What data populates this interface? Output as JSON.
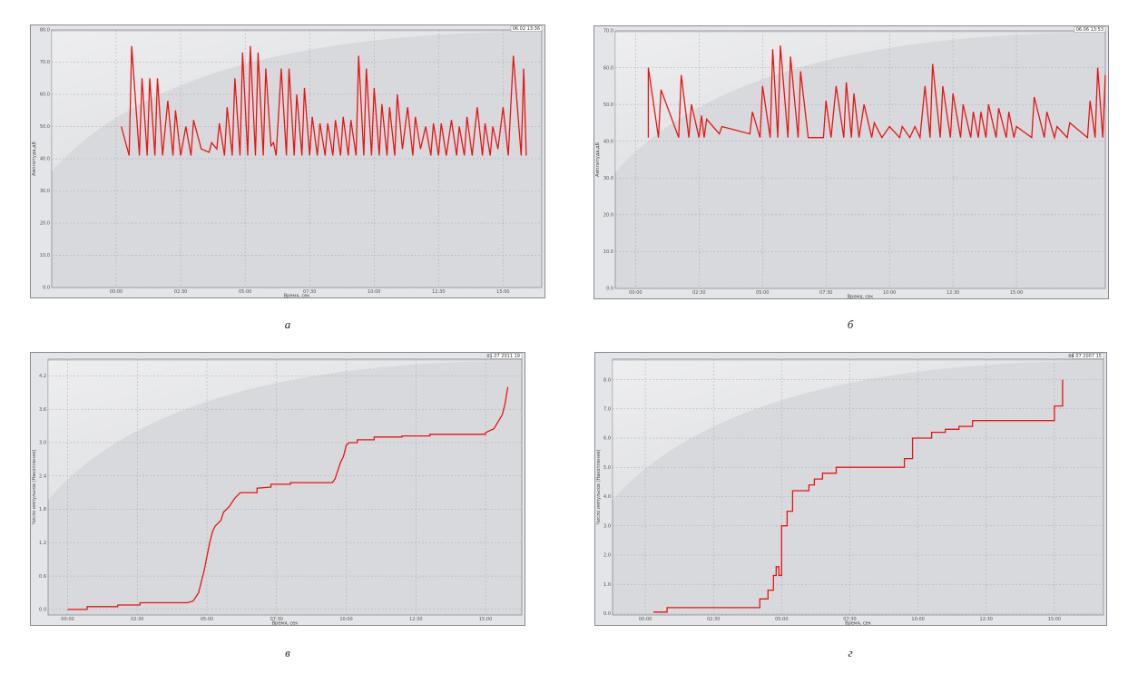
{
  "colors": {
    "series": "#e81414",
    "plot_bg": "#d8d9dc",
    "grid": "#a9aab0",
    "frame": "#8a8b90"
  },
  "chart_data": [
    {
      "id": "a",
      "type": "line",
      "caption": "а",
      "timestamp": "06.02 13:36",
      "xlabel": "Время, сек",
      "ylabel": "Амплитуда,дБ",
      "xlim": [
        -2.5,
        16.5
      ],
      "ylim": [
        0,
        80
      ],
      "xticks": [
        0,
        2.5,
        5,
        7.5,
        10,
        12.5,
        15
      ],
      "xtick_labels": [
        "00:00",
        "02:30",
        "05:00",
        "07:30",
        "10:00",
        "12:30",
        "15:00"
      ],
      "yticks": [
        0,
        10,
        20,
        30,
        40,
        50,
        60,
        70,
        80
      ],
      "ytick_labels": [
        "0.0",
        "10.0",
        "20.0",
        "30.0",
        "40.0",
        "50.0",
        "60.0",
        "70.0",
        "80.0"
      ],
      "grid": true,
      "x": [
        0.2,
        0.5,
        0.6,
        0.9,
        1.1,
        1.3,
        1.5,
        1.7,
        1.9,
        2.1,
        2.3,
        2.5,
        2.7,
        2.9,
        3.3,
        3.5,
        3.8,
        4.0,
        4.2,
        4.4,
        4.6,
        4.8,
        4.9,
        5.1,
        5.3,
        5.5,
        5.7,
        5.9,
        6.1,
        6.3,
        6.5,
        6.7,
        6.9,
        7.1,
        7.3,
        7.5,
        7.7,
        7.9,
        8.1,
        8.3,
        8.5,
        8.7,
        8.9,
        9.1,
        9.3,
        9.5,
        9.7,
        9.9,
        10.1,
        10.3,
        10.5,
        10.7,
        10.9,
        11.1,
        11.3,
        11.5,
        11.7,
        11.9,
        12.1,
        12.3,
        12.5,
        12.7,
        12.9,
        13.1,
        13.3,
        13.5,
        13.7,
        13.9,
        14.1,
        14.3,
        14.5,
        14.7,
        14.9,
        15.1,
        15.3,
        15.5,
        15.7,
        15.9
      ],
      "y": [
        41,
        41,
        75,
        41,
        65,
        41,
        65,
        41,
        65,
        41,
        58,
        41,
        55,
        41,
        50,
        41,
        52,
        42,
        45,
        41,
        44,
        41,
        51,
        41,
        56,
        41,
        65,
        41,
        74,
        41,
        75,
        41,
        73,
        41,
        69,
        41,
        60,
        41,
        69,
        41,
        68,
        41,
        61,
        41,
        62,
        41,
        53,
        41,
        51,
        41,
        51,
        41,
        52,
        41,
        53,
        41,
        52,
        41,
        72,
        41,
        68,
        41,
        62,
        41,
        57,
        41,
        56,
        41,
        60,
        41,
        56,
        41,
        53,
        41,
        50,
        41,
        51,
        41
      ],
      "points": [
        [
          0.2,
          50
        ],
        [
          0.5,
          41
        ],
        [
          0.6,
          75
        ],
        [
          0.9,
          41
        ],
        [
          1.0,
          65
        ],
        [
          1.2,
          41
        ],
        [
          1.3,
          65
        ],
        [
          1.5,
          41
        ],
        [
          1.6,
          65
        ],
        [
          1.8,
          41
        ],
        [
          2.0,
          58
        ],
        [
          2.2,
          41
        ],
        [
          2.3,
          55
        ],
        [
          2.5,
          41
        ],
        [
          2.7,
          50
        ],
        [
          2.9,
          41
        ],
        [
          3.0,
          52
        ],
        [
          3.3,
          43
        ],
        [
          3.6,
          42
        ],
        [
          3.7,
          45
        ],
        [
          3.9,
          43
        ],
        [
          4.0,
          51
        ],
        [
          4.2,
          41
        ],
        [
          4.3,
          56
        ],
        [
          4.5,
          41
        ],
        [
          4.6,
          65
        ],
        [
          4.8,
          41
        ],
        [
          4.9,
          73
        ],
        [
          5.1,
          41
        ],
        [
          5.2,
          75
        ],
        [
          5.4,
          41
        ],
        [
          5.5,
          73
        ],
        [
          5.7,
          41
        ],
        [
          5.8,
          68
        ],
        [
          6.0,
          44
        ],
        [
          6.1,
          45
        ],
        [
          6.2,
          41
        ],
        [
          6.4,
          68
        ],
        [
          6.6,
          41
        ],
        [
          6.7,
          68
        ],
        [
          6.9,
          41
        ],
        [
          7.0,
          60
        ],
        [
          7.2,
          41
        ],
        [
          7.3,
          62
        ],
        [
          7.5,
          41
        ],
        [
          7.6,
          53
        ],
        [
          7.8,
          41
        ],
        [
          7.9,
          51
        ],
        [
          8.1,
          41
        ],
        [
          8.2,
          51
        ],
        [
          8.4,
          41
        ],
        [
          8.5,
          52
        ],
        [
          8.7,
          41
        ],
        [
          8.8,
          53
        ],
        [
          9.0,
          41
        ],
        [
          9.1,
          52
        ],
        [
          9.3,
          41
        ],
        [
          9.4,
          72
        ],
        [
          9.6,
          41
        ],
        [
          9.7,
          68
        ],
        [
          9.9,
          41
        ],
        [
          10.0,
          62
        ],
        [
          10.2,
          41
        ],
        [
          10.3,
          57
        ],
        [
          10.5,
          41
        ],
        [
          10.6,
          56
        ],
        [
          10.8,
          41
        ],
        [
          10.9,
          60
        ],
        [
          11.1,
          43
        ],
        [
          11.3,
          56
        ],
        [
          11.5,
          41
        ],
        [
          11.6,
          53
        ],
        [
          11.8,
          43
        ],
        [
          12.0,
          50
        ],
        [
          12.2,
          41
        ],
        [
          12.3,
          51
        ],
        [
          12.5,
          41
        ],
        [
          12.6,
          51
        ],
        [
          12.8,
          41
        ],
        [
          13.0,
          52
        ],
        [
          13.2,
          41
        ],
        [
          13.3,
          50
        ],
        [
          13.5,
          41
        ],
        [
          13.6,
          53
        ],
        [
          13.8,
          41
        ],
        [
          14.0,
          56
        ],
        [
          14.2,
          41
        ],
        [
          14.3,
          51
        ],
        [
          14.5,
          41
        ],
        [
          14.6,
          50
        ],
        [
          14.8,
          43
        ],
        [
          15.0,
          56
        ],
        [
          15.2,
          41
        ],
        [
          15.4,
          72
        ],
        [
          15.7,
          41
        ],
        [
          15.8,
          68
        ],
        [
          15.9,
          41
        ]
      ]
    },
    {
      "id": "b",
      "type": "line",
      "caption": "б",
      "timestamp": "06.06 13:53",
      "xlabel": "Время, сек",
      "ylabel": "Амплитуда,дБ",
      "xlim": [
        -0.8,
        18.5
      ],
      "ylim": [
        0,
        70
      ],
      "xticks": [
        0,
        2.5,
        5,
        7.5,
        10,
        12.5,
        15
      ],
      "xtick_labels": [
        "00:00",
        "02:30",
        "05:00",
        "07:30",
        "10:00",
        "12:30",
        "15:00"
      ],
      "yticks": [
        0,
        10,
        20,
        30,
        40,
        50,
        60,
        70
      ],
      "ytick_labels": [
        "0.0",
        "10.0",
        "20.0",
        "30.0",
        "40.0",
        "50.0",
        "60.0",
        "70.0"
      ],
      "grid": true,
      "points": [
        [
          0.5,
          41
        ],
        [
          0.5,
          60
        ],
        [
          0.9,
          41
        ],
        [
          1.0,
          54
        ],
        [
          1.7,
          41
        ],
        [
          1.8,
          58
        ],
        [
          2.1,
          41
        ],
        [
          2.2,
          50
        ],
        [
          2.5,
          41
        ],
        [
          2.6,
          47
        ],
        [
          2.7,
          41
        ],
        [
          2.8,
          46
        ],
        [
          3.3,
          42
        ],
        [
          3.4,
          44
        ],
        [
          4.5,
          42
        ],
        [
          4.6,
          48
        ],
        [
          4.9,
          41
        ],
        [
          5.0,
          55
        ],
        [
          5.3,
          41
        ],
        [
          5.4,
          65
        ],
        [
          5.6,
          41
        ],
        [
          5.7,
          66
        ],
        [
          6.0,
          41
        ],
        [
          6.1,
          63
        ],
        [
          6.4,
          41
        ],
        [
          6.5,
          59
        ],
        [
          6.8,
          41
        ],
        [
          7.4,
          41
        ],
        [
          7.5,
          51
        ],
        [
          7.7,
          41
        ],
        [
          7.9,
          55
        ],
        [
          8.2,
          41
        ],
        [
          8.3,
          56
        ],
        [
          8.5,
          41
        ],
        [
          8.6,
          53
        ],
        [
          8.8,
          41
        ],
        [
          9.0,
          50
        ],
        [
          9.3,
          41
        ],
        [
          9.4,
          45
        ],
        [
          9.7,
          41
        ],
        [
          10.0,
          44
        ],
        [
          10.4,
          41
        ],
        [
          10.5,
          44
        ],
        [
          10.8,
          41
        ],
        [
          11.0,
          44
        ],
        [
          11.2,
          41
        ],
        [
          11.4,
          55
        ],
        [
          11.6,
          41
        ],
        [
          11.7,
          61
        ],
        [
          12.0,
          41
        ],
        [
          12.1,
          55
        ],
        [
          12.4,
          41
        ],
        [
          12.5,
          53
        ],
        [
          12.8,
          41
        ],
        [
          12.9,
          50
        ],
        [
          13.2,
          41
        ],
        [
          13.3,
          48
        ],
        [
          13.5,
          41
        ],
        [
          13.6,
          48
        ],
        [
          13.8,
          41
        ],
        [
          13.9,
          50
        ],
        [
          14.2,
          41
        ],
        [
          14.3,
          49
        ],
        [
          14.6,
          41
        ],
        [
          14.7,
          48
        ],
        [
          14.9,
          41
        ],
        [
          15.0,
          44
        ],
        [
          15.6,
          41
        ],
        [
          15.7,
          52
        ],
        [
          16.1,
          41
        ],
        [
          16.2,
          48
        ],
        [
          16.5,
          41
        ],
        [
          16.6,
          44
        ],
        [
          17.0,
          41
        ],
        [
          17.1,
          45
        ],
        [
          17.8,
          41
        ],
        [
          17.9,
          51
        ],
        [
          18.1,
          41
        ],
        [
          18.2,
          60
        ],
        [
          18.4,
          41
        ],
        [
          18.5,
          58
        ]
      ]
    },
    {
      "id": "v",
      "type": "line",
      "caption": "в",
      "timestamp": "01.07 2011 19",
      "xlabel": "Время, сек",
      "ylabel": "Число импульсов (Накопление)",
      "xlim": [
        -0.7,
        16.3
      ],
      "ylim": [
        -0.1,
        4.5
      ],
      "xticks": [
        0,
        2.5,
        5,
        7.5,
        10,
        12.5,
        15
      ],
      "xtick_labels": [
        "00:00",
        "02:30",
        "05:00",
        "07:30",
        "10:00",
        "12:30",
        "15:00"
      ],
      "yticks": [
        0,
        0.6,
        1.2,
        1.8,
        2.4,
        3.0,
        3.6,
        4.2
      ],
      "ytick_labels": [
        "0.0",
        "0.6",
        "1.2",
        "1.8",
        "2.4",
        "3.0",
        "3.6",
        "4.2"
      ],
      "grid": true,
      "points": [
        [
          0,
          0
        ],
        [
          0.7,
          0
        ],
        [
          0.7,
          0.05
        ],
        [
          1.8,
          0.05
        ],
        [
          1.8,
          0.08
        ],
        [
          2.6,
          0.08
        ],
        [
          2.6,
          0.12
        ],
        [
          4.3,
          0.12
        ],
        [
          4.5,
          0.15
        ],
        [
          4.6,
          0.22
        ],
        [
          4.7,
          0.3
        ],
        [
          4.8,
          0.5
        ],
        [
          4.9,
          0.7
        ],
        [
          5.0,
          0.95
        ],
        [
          5.1,
          1.2
        ],
        [
          5.2,
          1.4
        ],
        [
          5.3,
          1.5
        ],
        [
          5.5,
          1.6
        ],
        [
          5.6,
          1.75
        ],
        [
          5.8,
          1.85
        ],
        [
          6.0,
          2.0
        ],
        [
          6.2,
          2.1
        ],
        [
          6.8,
          2.1
        ],
        [
          6.8,
          2.18
        ],
        [
          7.3,
          2.2
        ],
        [
          7.3,
          2.25
        ],
        [
          8.0,
          2.25
        ],
        [
          8.0,
          2.28
        ],
        [
          9.5,
          2.28
        ],
        [
          9.6,
          2.35
        ],
        [
          9.7,
          2.5
        ],
        [
          9.8,
          2.65
        ],
        [
          9.9,
          2.75
        ],
        [
          10.0,
          2.95
        ],
        [
          10.1,
          3.0
        ],
        [
          10.4,
          3.0
        ],
        [
          10.4,
          3.05
        ],
        [
          11.0,
          3.05
        ],
        [
          11.0,
          3.1
        ],
        [
          12.0,
          3.1
        ],
        [
          12.0,
          3.12
        ],
        [
          13.0,
          3.12
        ],
        [
          13.0,
          3.15
        ],
        [
          15.0,
          3.15
        ],
        [
          15.0,
          3.18
        ],
        [
          15.3,
          3.25
        ],
        [
          15.6,
          3.5
        ],
        [
          15.7,
          3.7
        ],
        [
          15.8,
          4.0
        ]
      ]
    },
    {
      "id": "g",
      "type": "line",
      "caption": "г",
      "timestamp": "04.07 2007 15",
      "xlabel": "Время, сек",
      "ylabel": "Число импульсов (Накопление)",
      "xlim": [
        -1.2,
        16.8
      ],
      "ylim": [
        -0.05,
        8.7
      ],
      "xticks": [
        0,
        2.5,
        5,
        7.5,
        10,
        12.5,
        15
      ],
      "xtick_labels": [
        "00:00",
        "02:30",
        "05:00",
        "07:30",
        "10:00",
        "12:30",
        "15:00"
      ],
      "yticks": [
        0,
        1,
        2,
        3,
        4,
        5,
        6,
        7,
        8
      ],
      "ytick_labels": [
        "0.0",
        "1.0",
        "2.0",
        "3.0",
        "4.0",
        "5.0",
        "6.0",
        "7.0",
        "8.0"
      ],
      "grid": true,
      "points": [
        [
          0.3,
          0.05
        ],
        [
          0.8,
          0.05
        ],
        [
          0.8,
          0.2
        ],
        [
          4.2,
          0.2
        ],
        [
          4.2,
          0.5
        ],
        [
          4.5,
          0.5
        ],
        [
          4.5,
          0.8
        ],
        [
          4.7,
          0.8
        ],
        [
          4.7,
          1.3
        ],
        [
          4.8,
          1.3
        ],
        [
          4.8,
          1.6
        ],
        [
          4.9,
          1.6
        ],
        [
          4.9,
          1.3
        ],
        [
          5.0,
          1.3
        ],
        [
          5.0,
          3.0
        ],
        [
          5.2,
          3.0
        ],
        [
          5.2,
          3.5
        ],
        [
          5.4,
          3.5
        ],
        [
          5.4,
          4.2
        ],
        [
          6.0,
          4.2
        ],
        [
          6.0,
          4.4
        ],
        [
          6.2,
          4.4
        ],
        [
          6.2,
          4.6
        ],
        [
          6.5,
          4.6
        ],
        [
          6.5,
          4.8
        ],
        [
          7.0,
          4.8
        ],
        [
          7.0,
          5.0
        ],
        [
          9.5,
          5.0
        ],
        [
          9.5,
          5.3
        ],
        [
          9.8,
          5.3
        ],
        [
          9.8,
          6.0
        ],
        [
          10.5,
          6.0
        ],
        [
          10.5,
          6.2
        ],
        [
          11.0,
          6.2
        ],
        [
          11.0,
          6.3
        ],
        [
          11.5,
          6.3
        ],
        [
          11.5,
          6.4
        ],
        [
          12.0,
          6.4
        ],
        [
          12.0,
          6.6
        ],
        [
          15.0,
          6.6
        ],
        [
          15.0,
          7.1
        ],
        [
          15.3,
          7.1
        ],
        [
          15.3,
          8.0
        ]
      ]
    }
  ]
}
